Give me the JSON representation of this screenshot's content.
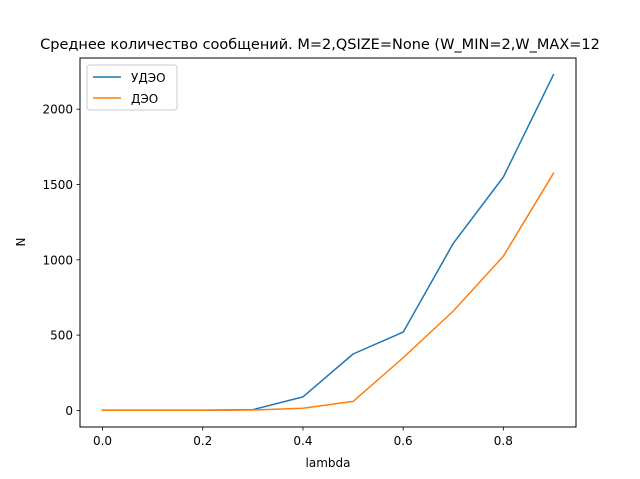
{
  "chart_data": {
    "type": "line",
    "title": "Среднее количество сообщений. M=2,QSIZE=None (W_MIN=2,W_MAX=12",
    "xlabel": "lambda",
    "ylabel": "N",
    "xlim": [
      -0.045,
      0.945
    ],
    "ylim": [
      -110,
      2340
    ],
    "xticks": [
      0.0,
      0.2,
      0.4,
      0.6,
      0.8
    ],
    "xtick_labels": [
      "0.0",
      "0.2",
      "0.4",
      "0.6",
      "0.8"
    ],
    "yticks": [
      0,
      500,
      1000,
      1500,
      2000
    ],
    "ytick_labels": [
      "0",
      "500",
      "1000",
      "1500",
      "2000"
    ],
    "grid": false,
    "legend_position": "top-left",
    "x": [
      0.0,
      0.1,
      0.2,
      0.3,
      0.4,
      0.5,
      0.6,
      0.7,
      0.8,
      0.9
    ],
    "series": [
      {
        "name": "УДЭО",
        "color": "#1f77b4",
        "values": [
          2,
          2,
          2,
          5,
          90,
          375,
          520,
          1110,
          1550,
          2230
        ]
      },
      {
        "name": "ДЭО",
        "color": "#ff7f0e",
        "values": [
          1,
          1,
          1,
          3,
          15,
          60,
          350,
          660,
          1025,
          1575
        ]
      }
    ]
  }
}
